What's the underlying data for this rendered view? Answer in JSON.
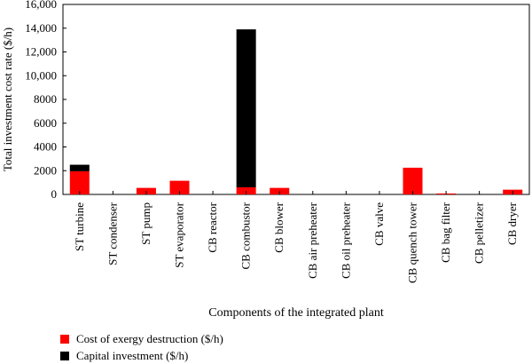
{
  "chart_data": {
    "type": "bar",
    "stacked": true,
    "categories": [
      "ST turbine",
      "ST condenser",
      "ST pump",
      "ST evaporator",
      "CB reactor",
      "CB combustor",
      "CB blower",
      "CB air preheater",
      "CB oil preheater",
      "CB valve",
      "CB quench tower",
      "CB bag filter",
      "CB pelletizer",
      "CB dryer"
    ],
    "series": [
      {
        "name": "Cost of exergy destruction ($/h)",
        "color": "#ff0000",
        "values": [
          1950,
          0,
          550,
          1150,
          0,
          600,
          550,
          0,
          0,
          0,
          2250,
          80,
          0,
          400
        ]
      },
      {
        "name": "Capital investment ($/h)",
        "color": "#000000",
        "values": [
          550,
          0,
          0,
          0,
          0,
          13300,
          0,
          0,
          0,
          0,
          0,
          0,
          0,
          0
        ]
      }
    ],
    "xlabel": "Components of the integrated plant",
    "ylabel": "Total investment cost rate ($/h)",
    "ylim": [
      0,
      16000
    ],
    "yticks": [
      0,
      2000,
      4000,
      6000,
      8000,
      10000,
      12000,
      14000,
      16000
    ],
    "ytick_labels": [
      "0",
      "2000",
      "4000",
      "6000",
      "8000",
      "10,000",
      "12,000",
      "14,000",
      "16,000"
    ],
    "grid": false,
    "legend_position": "bottom-left"
  }
}
